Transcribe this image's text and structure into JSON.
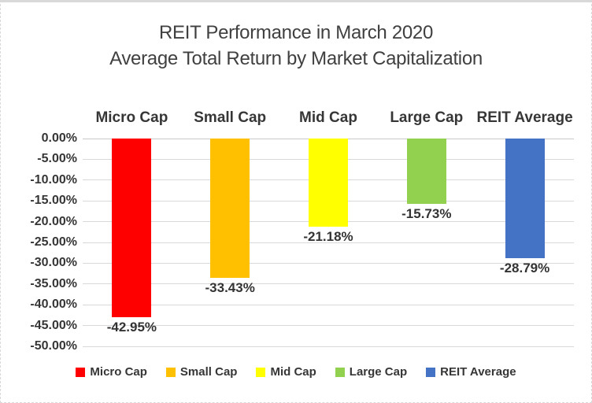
{
  "title": {
    "line1": "REIT Performance in March 2020",
    "line2": "Average Total Return by Market Capitalization"
  },
  "chart_data": {
    "type": "bar",
    "title": "REIT Performance in March 2020 — Average Total Return by Market Capitalization",
    "categories": [
      "Micro Cap",
      "Small Cap",
      "Mid Cap",
      "Large Cap",
      "REIT Average"
    ],
    "values": [
      -42.95,
      -33.43,
      -21.18,
      -15.73,
      -28.79
    ],
    "value_labels": [
      "-42.95%",
      "-33.43%",
      "-21.18%",
      "-15.73%",
      "-28.79%"
    ],
    "colors": [
      "#ff0000",
      "#ffc000",
      "#ffff00",
      "#92d050",
      "#4472c4"
    ],
    "xlabel": "",
    "ylabel": "",
    "ylim": [
      -50,
      0
    ],
    "y_tick_step": -5,
    "y_tick_labels": [
      "0.00%",
      "-5.00%",
      "-10.00%",
      "-15.00%",
      "-20.00%",
      "-25.00%",
      "-30.00%",
      "-35.00%",
      "-40.00%",
      "-45.00%",
      "-50.00%"
    ],
    "grid": true,
    "gridline_color": "#d9d9d9",
    "text_color": "#404040",
    "legend": {
      "position": "bottom",
      "entries": [
        {
          "label": "Micro Cap",
          "color": "#ff0000"
        },
        {
          "label": "Small Cap",
          "color": "#ffc000"
        },
        {
          "label": "Mid Cap",
          "color": "#ffff00"
        },
        {
          "label": "Large Cap",
          "color": "#92d050"
        },
        {
          "label": "REIT Average",
          "color": "#4472c4"
        }
      ]
    }
  }
}
